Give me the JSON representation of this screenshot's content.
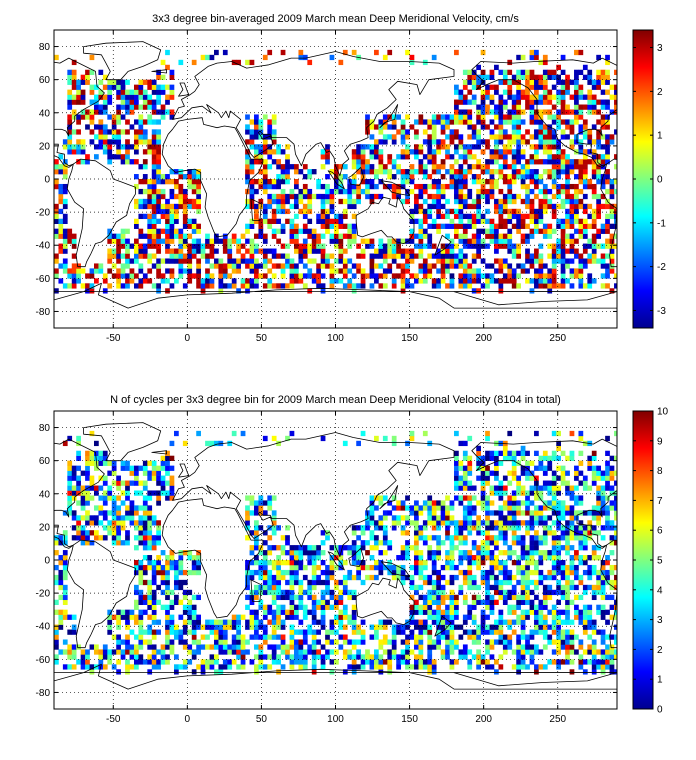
{
  "chart_data": [
    {
      "type": "heatmap",
      "title": "3x3 degree bin-averaged 2009 March mean Deep Meridional Velocity, cm/s",
      "xlabel": "",
      "ylabel": "",
      "xlim": [
        -90,
        290
      ],
      "ylim": [
        -90,
        90
      ],
      "x_ticks": [
        -50,
        0,
        50,
        100,
        150,
        200,
        250
      ],
      "y_ticks": [
        -80,
        -60,
        -40,
        -20,
        0,
        20,
        40,
        60,
        80
      ],
      "bin_size_deg": 3,
      "grid": true,
      "colorbar": {
        "min": -3.4,
        "max": 3.4,
        "ticks": [
          -3,
          -2,
          -1,
          0,
          1,
          2,
          3
        ],
        "colormap": "jet",
        "placement": "right"
      },
      "background": "world coastline map"
    },
    {
      "type": "heatmap",
      "title": "N of cycles per 3x3 degree bin for 2009 March mean Deep Meridional Velocity (8104 in total)",
      "xlabel": "",
      "ylabel": "",
      "xlim": [
        -90,
        290
      ],
      "ylim": [
        -90,
        90
      ],
      "x_ticks": [
        -50,
        0,
        50,
        100,
        150,
        200,
        250
      ],
      "y_ticks": [
        -80,
        -60,
        -40,
        -20,
        0,
        20,
        40,
        60,
        80
      ],
      "bin_size_deg": 3,
      "grid": true,
      "colorbar": {
        "min": 0,
        "max": 10,
        "ticks": [
          0,
          1,
          2,
          3,
          4,
          5,
          6,
          7,
          8,
          9,
          10
        ],
        "colormap": "jet",
        "placement": "right"
      },
      "background": "world coastline map"
    }
  ]
}
